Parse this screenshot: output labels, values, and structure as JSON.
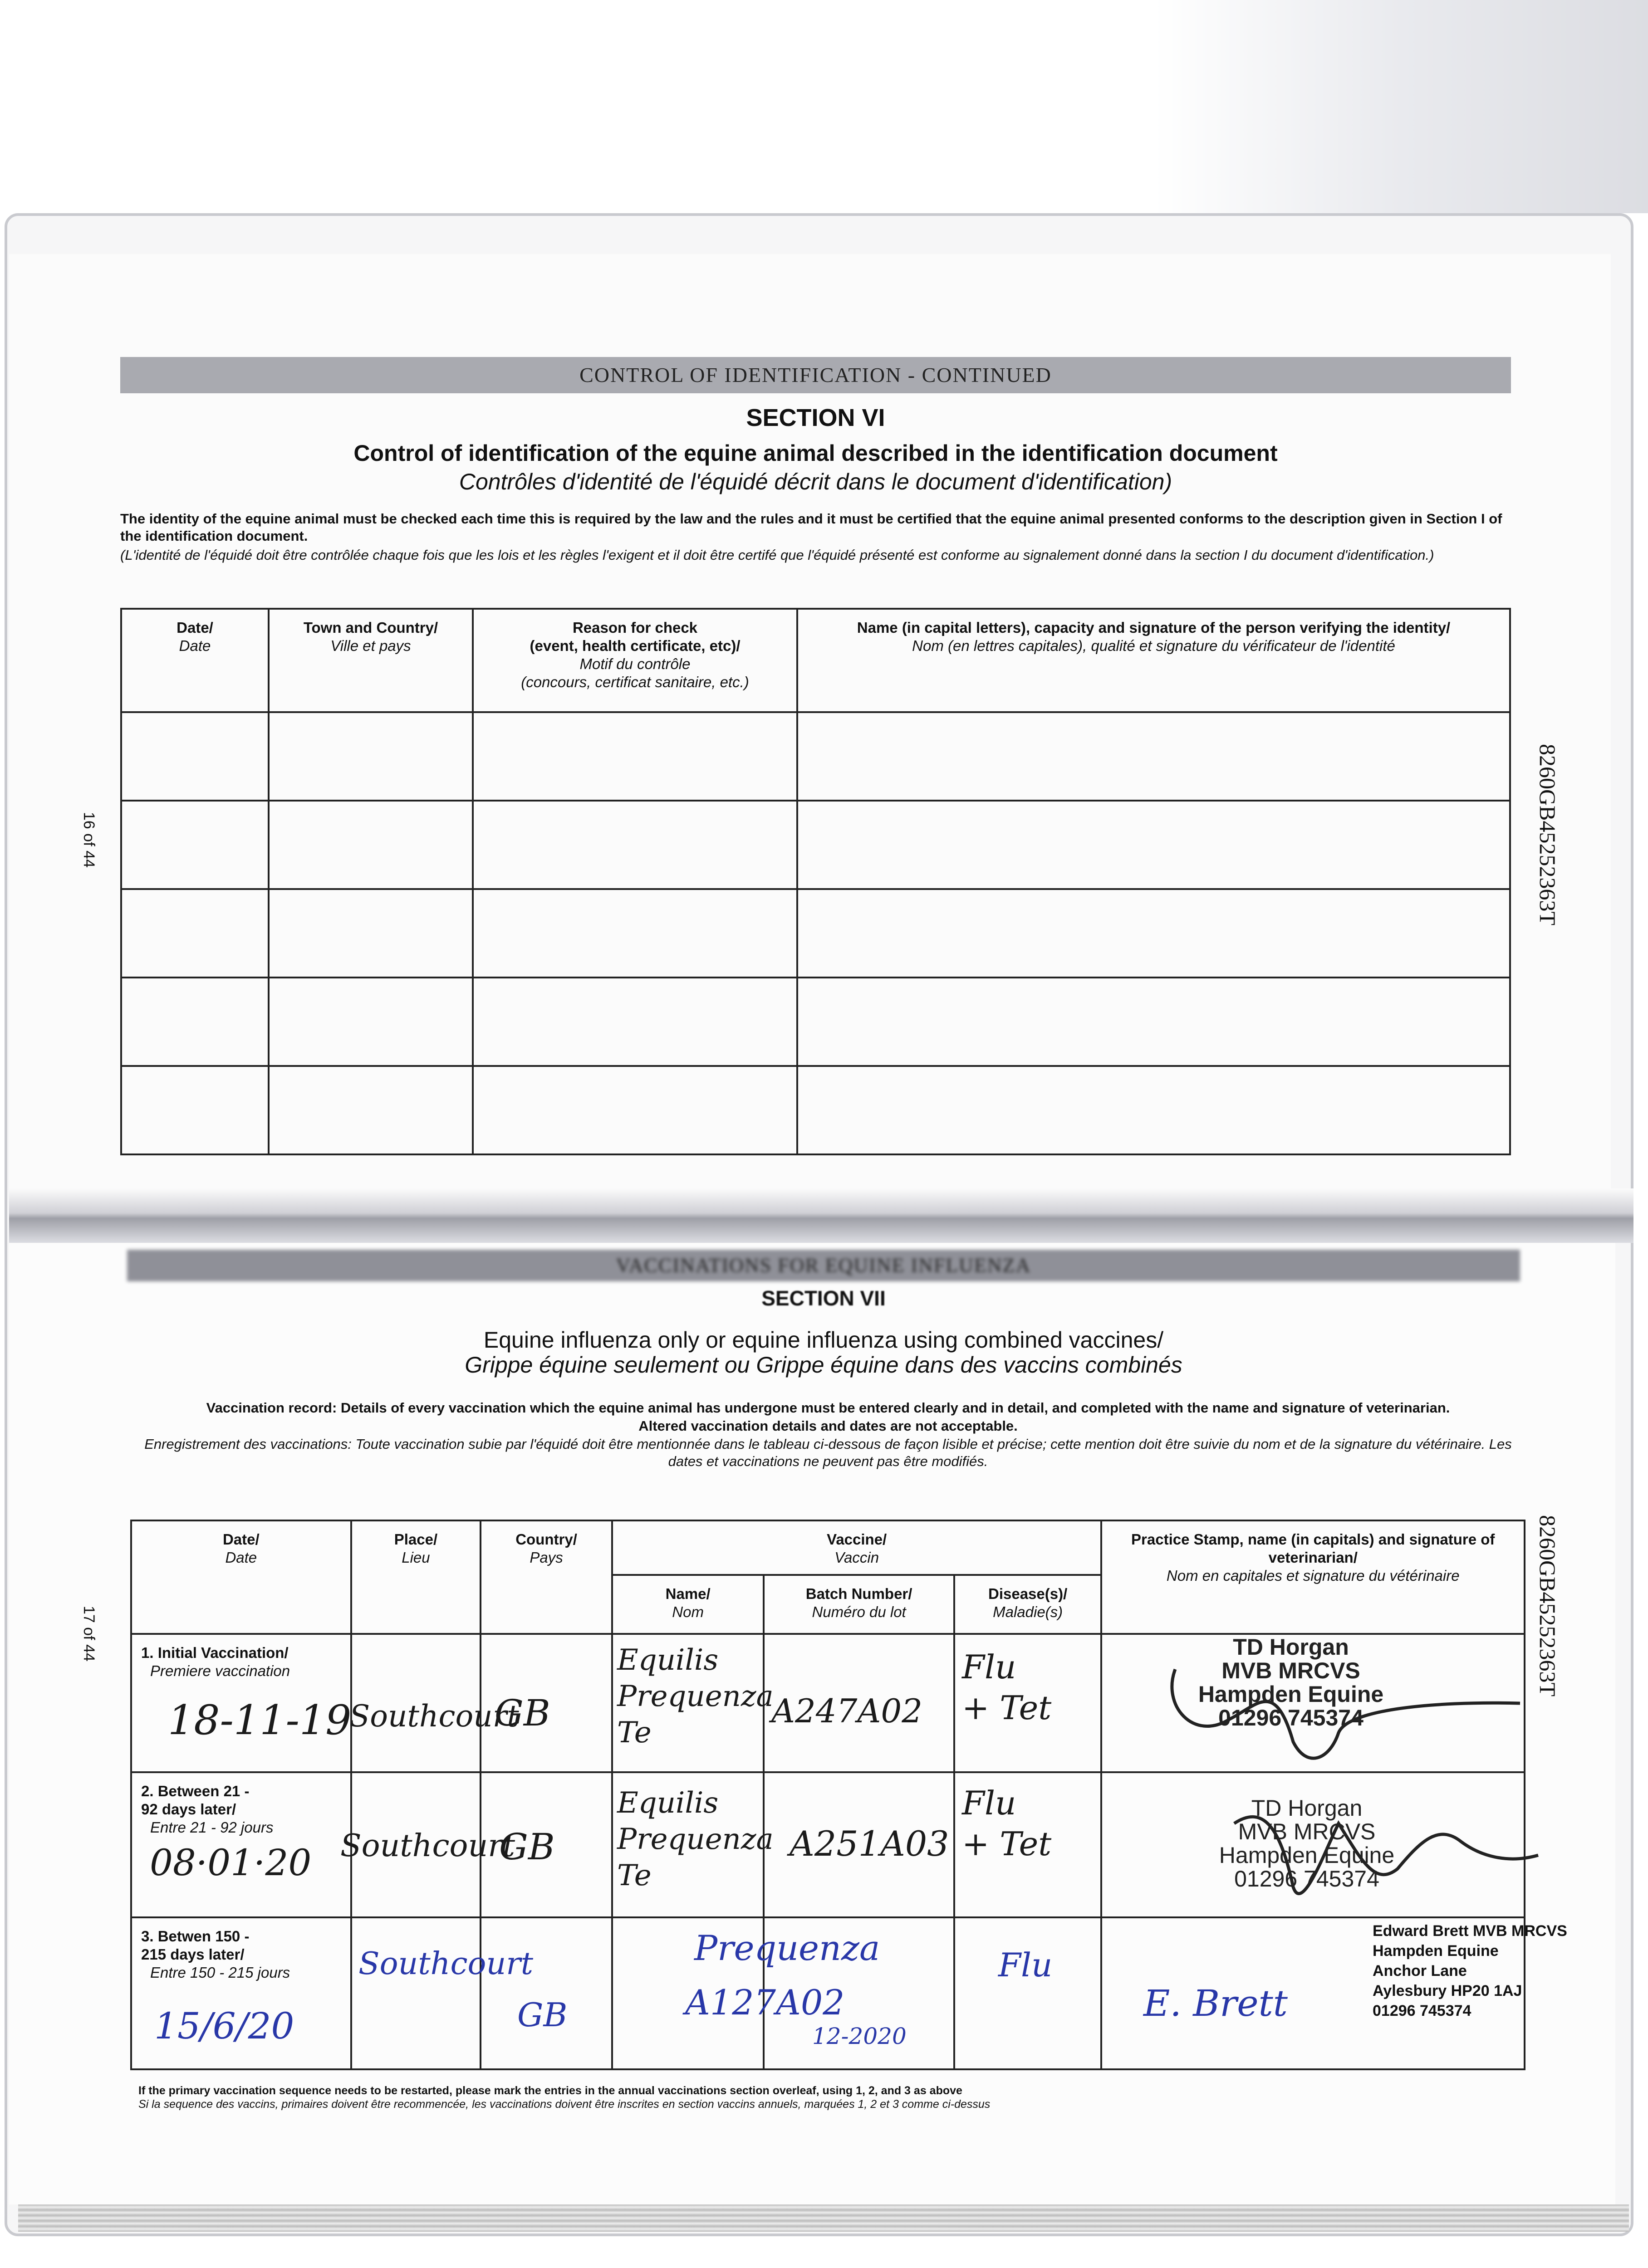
{
  "upper_page": {
    "banner": "CONTROL OF IDENTIFICATION - CONTINUED",
    "section": "SECTION VI",
    "title": "Control of identification of the equine animal described in the identification document",
    "title_fr": "Contrôles d'identité de l'équidé décrit dans le document d'identification)",
    "intro": "The identity of the equine animal must be checked each time this is required by the law and the rules and it must be certified that the equine animal presented conforms to the description given in Section I of the identification document.",
    "intro_fr": "(L'identité de l'équidé doit être contrôlée chaque fois que les lois et les règles l'exigent et il doit être certifé que l'équidé présenté est conforme au signalement donné dans la section I du document d'identification.)",
    "columns": [
      {
        "en": "Date/",
        "fr": "Date"
      },
      {
        "en": "Town and Country/",
        "fr": "Ville et pays"
      },
      {
        "en": "Reason for check",
        "en2": "(event, health certificate, etc)/",
        "fr": "Motif du contrôle",
        "fr2": "(concours, certificat sanitaire, etc.)"
      },
      {
        "en": "Name (in capital letters), capacity and signature of the person verifying the identity/",
        "fr": "Nom (en lettres capitales), qualité et signature du vérificateur de l'identité"
      }
    ],
    "page_number": "16 of 44",
    "document_id": "8260GB45252363T"
  },
  "lower_page": {
    "banner": "VACCINATIONS FOR EQUINE INFLUENZA",
    "section": "SECTION VII",
    "title": "Equine influenza only or equine influenza using combined vaccines/",
    "title_fr": "Grippe équine seulement ou Grippe équine dans des vaccins combinés",
    "intro": "Vaccination record: Details of every vaccination which the equine animal has undergone must be entered clearly and in detail, and completed with the name and signature of veterinarian.",
    "intro2": "Altered vaccination details and dates are not acceptable.",
    "intro_fr": "Enregistrement des vaccinations: Toute vaccination subie par l'équidé doit être mentionnée dans le tableau ci-dessous de façon lisible et précise; cette mention doit être suivie du nom et de la signature du vétérinaire. Les dates et vaccinations ne peuvent pas être modifiés.",
    "headers": {
      "date": {
        "en": "Date/",
        "fr": "Date"
      },
      "place": {
        "en": "Place/",
        "fr": "Lieu"
      },
      "country": {
        "en": "Country/",
        "fr": "Pays"
      },
      "vaccine": {
        "en": "Vaccine/",
        "fr": "Vaccin"
      },
      "name": {
        "en": "Name/",
        "fr": "Nom"
      },
      "batch": {
        "en": "Batch Number/",
        "fr": "Numéro du lot"
      },
      "disease": {
        "en": "Disease(s)/",
        "fr": "Maladie(s)"
      },
      "stamp": {
        "en": "Practice Stamp, name (in capitals) and signature of veterinarian/",
        "fr": "Nom en capitales et signature du vétérinaire"
      }
    },
    "rows": [
      {
        "label": "1. Initial Vaccination/",
        "label_fr": "Premiere vaccination",
        "date": "18-11-19",
        "place": "Southcourt",
        "country": "GB",
        "name": "Equilis Prequenza Te",
        "batch": "A247A02",
        "disease": "Flu + Tet",
        "stamp": [
          "TD Horgan",
          "MVB MRCVS",
          "Hampden Equine",
          "01296 745374"
        ]
      },
      {
        "label": "2. Between 21 - 92 days later/",
        "label_fr": "Entre 21 - 92 jours",
        "date": "08·01·20",
        "place": "Southcourt",
        "country": "GB",
        "name": "Equilis Prequenza Te",
        "batch": "A251A03",
        "disease": "Flu + Tet",
        "stamp": [
          "TD Horgan",
          "MVB MRCVS",
          "Hampden Equine",
          "01296 745374"
        ]
      },
      {
        "label": "3. Betwen 150 - 215 days later/",
        "label_fr": "Entre 150 - 215 jours",
        "date": "15/6/20",
        "place": "Southcourt",
        "country": "GB",
        "name": "Prequenza",
        "batch": "A127A02",
        "expiry": "12-2020",
        "disease": "Flu",
        "signature": "E. Brett",
        "stamp": [
          "Edward Brett MVB MRCVS",
          "Hampden Equine",
          "Anchor Lane",
          "Aylesbury HP20 1AJ",
          "01296 745374"
        ]
      }
    ],
    "footer": "If the primary vaccination sequence needs to be restarted, please mark the entries in the annual vaccinations section overleaf, using 1, 2, and 3 as above",
    "footer_fr": "Si la sequence des vaccins, primaires doivent être recommencée, les vaccinations doivent être inscrites en section vaccins annuels, marquées 1, 2 et 3 comme ci-dessus",
    "page_number": "17 of 44",
    "document_id": "8260GB45252363T"
  }
}
